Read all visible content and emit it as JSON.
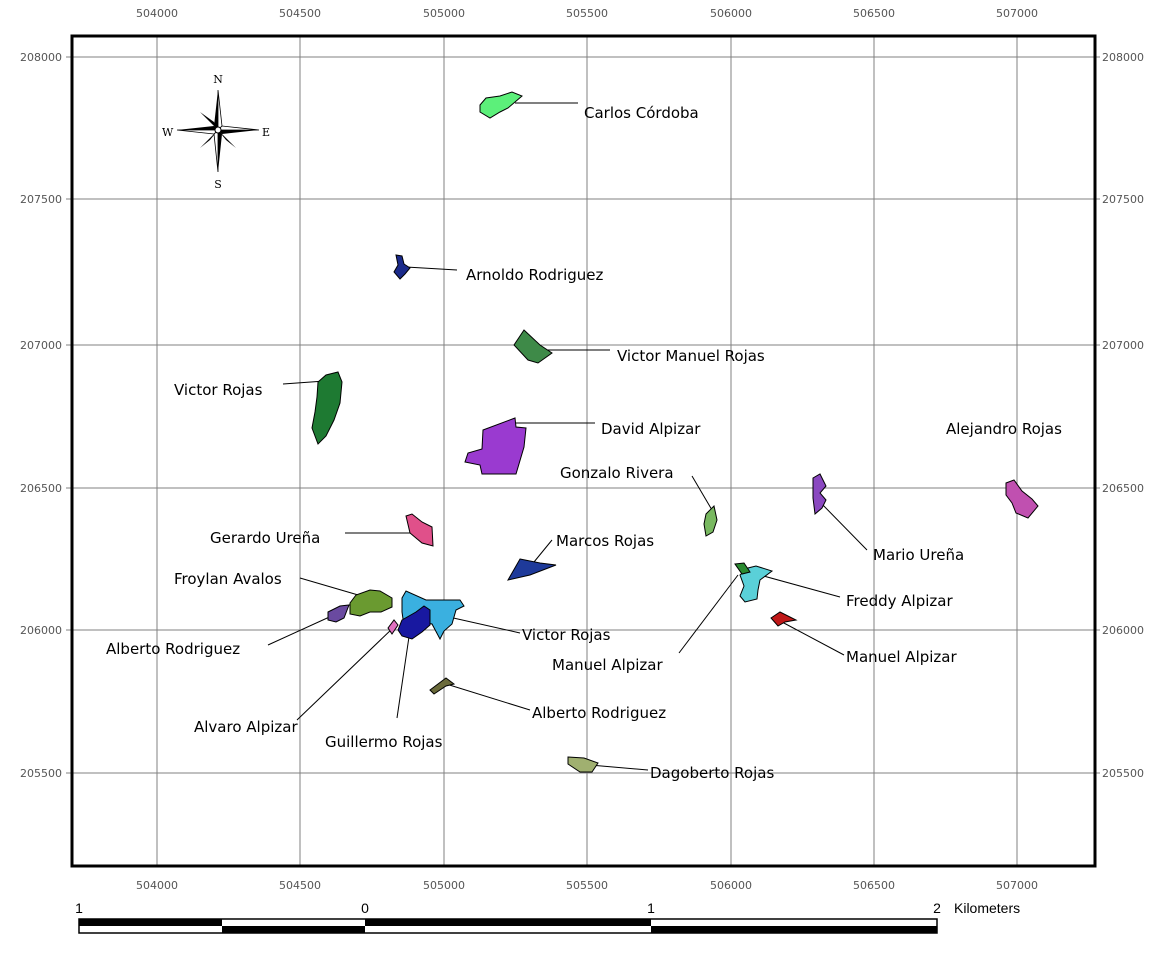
{
  "axes": {
    "x_ticks": [
      "504000",
      "504500",
      "505000",
      "505500",
      "506000",
      "506500",
      "507000"
    ],
    "y_ticks": [
      "208000",
      "207500",
      "207000",
      "206500",
      "206000",
      "205500"
    ]
  },
  "north_arrow": {
    "n": "N",
    "s": "S",
    "e": "E",
    "w": "W",
    "icon": "compass-rose-icon"
  },
  "parcels": [
    {
      "id": "carlos-cordoba",
      "label": "Carlos Córdoba",
      "color": "#5cf07a"
    },
    {
      "id": "arnoldo-rodriguez",
      "label": "Arnoldo Rodriguez",
      "color": "#1a2a8a"
    },
    {
      "id": "victor-manuel-rojas",
      "label": "Victor Manuel Rojas",
      "color": "#3e8a48"
    },
    {
      "id": "victor-rojas-1",
      "label": "Victor Rojas",
      "color": "#1e7a32"
    },
    {
      "id": "david-alpizar",
      "label": "David Alpizar",
      "color": "#9a3ad0"
    },
    {
      "id": "alejandro-rojas",
      "label": "Alejandro Rojas",
      "color": "#c050b0"
    },
    {
      "id": "gonzalo-rivera",
      "label": "Gonzalo Rivera",
      "color": "#78b860"
    },
    {
      "id": "gerardo-urena",
      "label": "Gerardo Ureña",
      "color": "#e0508a"
    },
    {
      "id": "marcos-rojas",
      "label": "Marcos Rojas",
      "color": "#1e3a9a"
    },
    {
      "id": "mario-urena",
      "label": "Mario Ureña",
      "color": "#8a48c0"
    },
    {
      "id": "froylan-avalos",
      "label": "Froylan Avalos",
      "color": "#6a9a30"
    },
    {
      "id": "freddy-alpizar",
      "label": "Freddy Alpizar",
      "color": "#5ad0d8"
    },
    {
      "id": "victor-rojas-2",
      "label": "Victor Rojas",
      "color": "#3ab0e0"
    },
    {
      "id": "alberto-rodriguez-1",
      "label": "Alberto Rodriguez",
      "color": "#6a4aa0"
    },
    {
      "id": "manuel-alpizar-1",
      "label": "Manuel Alpizar",
      "color": "#2a8a30"
    },
    {
      "id": "manuel-alpizar-2",
      "label": "Manuel Alpizar",
      "color": "#c01818"
    },
    {
      "id": "alvaro-alpizar",
      "label": "Alvaro Alpizar",
      "color": "#e070c0"
    },
    {
      "id": "guillermo-rojas",
      "label": "Guillermo Rojas",
      "color": "#1818a0"
    },
    {
      "id": "alberto-rodriguez-2",
      "label": "Alberto Rodriguez",
      "color": "#6a6a3a"
    },
    {
      "id": "dagoberto-rojas",
      "label": "Dagoberto Rojas",
      "color": "#a0b070"
    }
  ],
  "scale_bar": {
    "labels": [
      "1",
      "0",
      "1",
      "2"
    ],
    "unit": "Kilometers"
  }
}
